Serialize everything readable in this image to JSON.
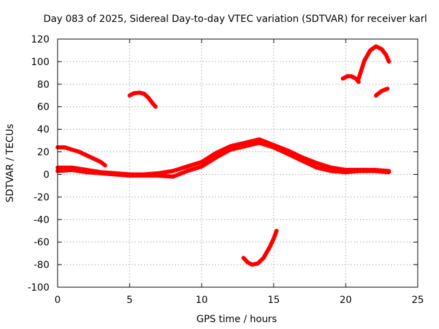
{
  "chart_data": {
    "type": "line",
    "title": "Day 083 of 2025, Sidereal Day-to-day VTEC variation (SDTVAR) for receiver karl",
    "xlabel": "GPS time / hours",
    "ylabel": "SDTVAR / TECUs",
    "xlim": [
      0,
      25
    ],
    "ylim": [
      -100,
      120
    ],
    "xticks": [
      0,
      5,
      10,
      15,
      20,
      25
    ],
    "yticks": [
      -100,
      -80,
      -60,
      -40,
      -20,
      0,
      20,
      40,
      60,
      80,
      100,
      120
    ],
    "grid": true,
    "color": "#ff0000",
    "series": [
      {
        "name": "main-band-upper",
        "points": [
          [
            0,
            6
          ],
          [
            1,
            6
          ],
          [
            2,
            4
          ],
          [
            3,
            2
          ],
          [
            4,
            1
          ],
          [
            5,
            0
          ],
          [
            6,
            0
          ],
          [
            7,
            1
          ],
          [
            8,
            3
          ],
          [
            9,
            7
          ],
          [
            10,
            11
          ],
          [
            11,
            19
          ],
          [
            12,
            25
          ],
          [
            13,
            28
          ],
          [
            14,
            31
          ],
          [
            15,
            26
          ],
          [
            16,
            21
          ],
          [
            17,
            15
          ],
          [
            18,
            10
          ],
          [
            19,
            6
          ],
          [
            20,
            4
          ],
          [
            21,
            4
          ],
          [
            22,
            4
          ],
          [
            23,
            3
          ]
        ]
      },
      {
        "name": "main-band-lower",
        "points": [
          [
            0,
            3
          ],
          [
            1,
            4
          ],
          [
            2,
            2
          ],
          [
            3,
            1
          ],
          [
            4,
            0
          ],
          [
            5,
            -1
          ],
          [
            6,
            -1
          ],
          [
            7,
            -1
          ],
          [
            8,
            -2
          ],
          [
            9,
            3
          ],
          [
            10,
            7
          ],
          [
            11,
            15
          ],
          [
            12,
            22
          ],
          [
            13,
            25
          ],
          [
            14,
            28
          ],
          [
            15,
            24
          ],
          [
            16,
            18
          ],
          [
            17,
            12
          ],
          [
            18,
            6
          ],
          [
            19,
            3
          ],
          [
            20,
            2
          ],
          [
            21,
            3
          ],
          [
            22,
            3
          ],
          [
            23,
            2
          ]
        ]
      },
      {
        "name": "early-track",
        "points": [
          [
            0,
            24
          ],
          [
            0.5,
            24
          ],
          [
            1,
            22
          ],
          [
            1.5,
            20
          ],
          [
            2,
            17
          ],
          [
            2.5,
            14
          ],
          [
            3,
            11
          ],
          [
            3.3,
            8
          ]
        ]
      },
      {
        "name": "arc-near-6h",
        "points": [
          [
            5,
            70
          ],
          [
            5.3,
            72
          ],
          [
            5.7,
            72.5
          ],
          [
            6,
            71.5
          ],
          [
            6.3,
            68
          ],
          [
            6.6,
            63
          ],
          [
            6.8,
            60
          ]
        ]
      },
      {
        "name": "dip-near-13h",
        "points": [
          [
            12.9,
            -74
          ],
          [
            13.2,
            -78
          ],
          [
            13.5,
            -80
          ],
          [
            13.9,
            -79
          ],
          [
            14.3,
            -74
          ],
          [
            14.7,
            -65
          ],
          [
            15.0,
            -57
          ],
          [
            15.2,
            -50
          ]
        ]
      },
      {
        "name": "arc-near-20h",
        "points": [
          [
            19.8,
            85
          ],
          [
            20.1,
            87
          ],
          [
            20.4,
            87
          ],
          [
            20.7,
            85
          ],
          [
            20.9,
            82
          ]
        ]
      },
      {
        "name": "arc-near-22h",
        "points": [
          [
            20.9,
            85
          ],
          [
            21.3,
            101
          ],
          [
            21.7,
            110
          ],
          [
            22.1,
            113.5
          ],
          [
            22.5,
            111
          ],
          [
            22.8,
            106
          ],
          [
            23.0,
            100
          ]
        ]
      },
      {
        "name": "track-near-23h",
        "points": [
          [
            22.1,
            70
          ],
          [
            22.5,
            74
          ],
          [
            22.9,
            76
          ]
        ]
      }
    ]
  }
}
